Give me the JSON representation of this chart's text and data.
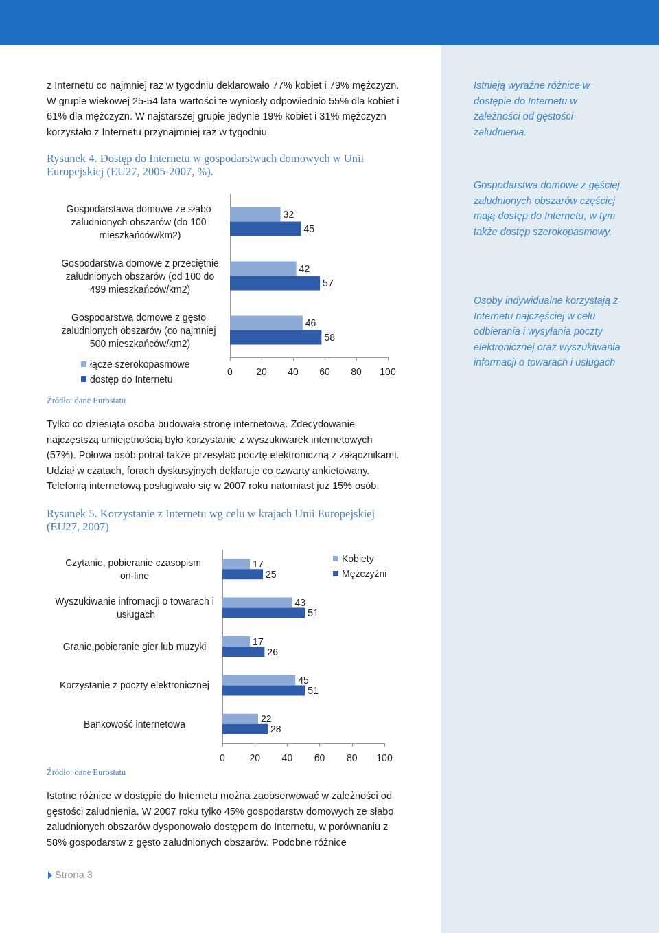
{
  "chart_data": [
    {
      "type": "bar",
      "orientation": "horizontal",
      "title": "Rysunek 4. Dostęp do Internetu w gospodarstwach domowych w Unii Europejskiej (EU27, 2005-2007, %).",
      "categories": [
        "Gospodarstawa domowe ze słabo zaludnionych obszarów (do 100 mieszkańców/km2)",
        "Gospodarstwa domowe z przeciętnie zaludnionych obszarów (od 100 do 499 mieszkańców/km2)",
        "Gospodarstwa domowe z gęsto zaludnionych obszarów (co najmniej 500 mieszkańców/km2)"
      ],
      "series": [
        {
          "name": "łącze szerokopasmowe",
          "color": "#8eabd8",
          "values": [
            32,
            42,
            46
          ]
        },
        {
          "name": "dostęp do Internetu",
          "color": "#2f5ca8",
          "values": [
            45,
            57,
            58
          ]
        }
      ],
      "xlim": [
        0,
        100
      ],
      "xticks": [
        0,
        20,
        40,
        60,
        80,
        100
      ],
      "data_labels": true,
      "legend": "bottom left",
      "grid": false,
      "annotations": [
        "z Internetu co najmniej raz w tygodniu deklarowało 77% kobiet i 79% mężczyzn. W grupie wiekowej 25-54 lata wartości te wyniosły odpowiednio 55% dla kobiet i 61% dla mężczyzn. W najstarszej grupie jedynie 19% kobiet i 31% mężczyzn korzystało z Internetu przynajmniej raz w tygodniu.",
        "Istnieją wyraźne różnice w dostępie do Internetu w zależności od gęstości zaludnienia.",
        "Gospodarstwa domowe z gęściej zaludnionych obszarów częściej mają dostęp do Internetu, w tym także dostęp szerokopasmowy.",
        "Osoby indywidualne korzystają z Internetu najczęściej w celu odbierania i wysyłania poczty elektronicznej oraz wyszukiwania informacji o towarach i usługach",
        "Źródło: dane Eurostatu"
      ]
    },
    {
      "type": "bar",
      "orientation": "horizontal",
      "title": "Rysunek 5. Korzystanie z Internetu wg celu w krajach Unii Europejskiej (EU27, 2007)",
      "categories": [
        "Czytanie, pobieranie czasopism on-line",
        "Wyszukiwanie infromacji o towarach i usługach",
        "Granie,pobieranie gier lub muzyki",
        "Korzystanie z poczty elektronicznej",
        "Bankowość internetowa"
      ],
      "series": [
        {
          "name": "Kobiety",
          "color": "#8eabd8",
          "values": [
            17,
            43,
            17,
            45,
            22
          ]
        },
        {
          "name": "Mężczyźni",
          "color": "#2f5ca8",
          "values": [
            25,
            51,
            26,
            51,
            28
          ]
        }
      ],
      "xlim": [
        0,
        100
      ],
      "xticks": [
        0,
        20,
        40,
        60,
        80,
        100
      ],
      "data_labels": true,
      "legend": "top right",
      "grid": false,
      "annotations": [
        "Tylko co dziesiąta osoba budowała stronę internetową. Zdecydowanie najczęstszą umiejętnością było korzystanie z wyszukiwarek internetowych (57%). Połowa osób potraf także przesyłać pocztę elektroniczną z załącznikami. Udział w czatach, forach dyskusyjnych deklaruje co czwarty ankietowany. Telefonią internetową posługiwało się w 2007 roku natomiast już 15% osób.",
        "Źródło: dane Eurostatu",
        "Istotne różnice w dostępie do Internetu można zaobserwować w zależności od gęstości zaludnienia. W 2007 roku tylko 45% gospodarstw domowych ze słabo zaludnionych obszarów dysponowało dostępem do Internetu, w porównaniu z 58% gospodarstw z gęsto zaludnionych obszarów. Podobne różnice",
        "Strona 3"
      ]
    }
  ]
}
